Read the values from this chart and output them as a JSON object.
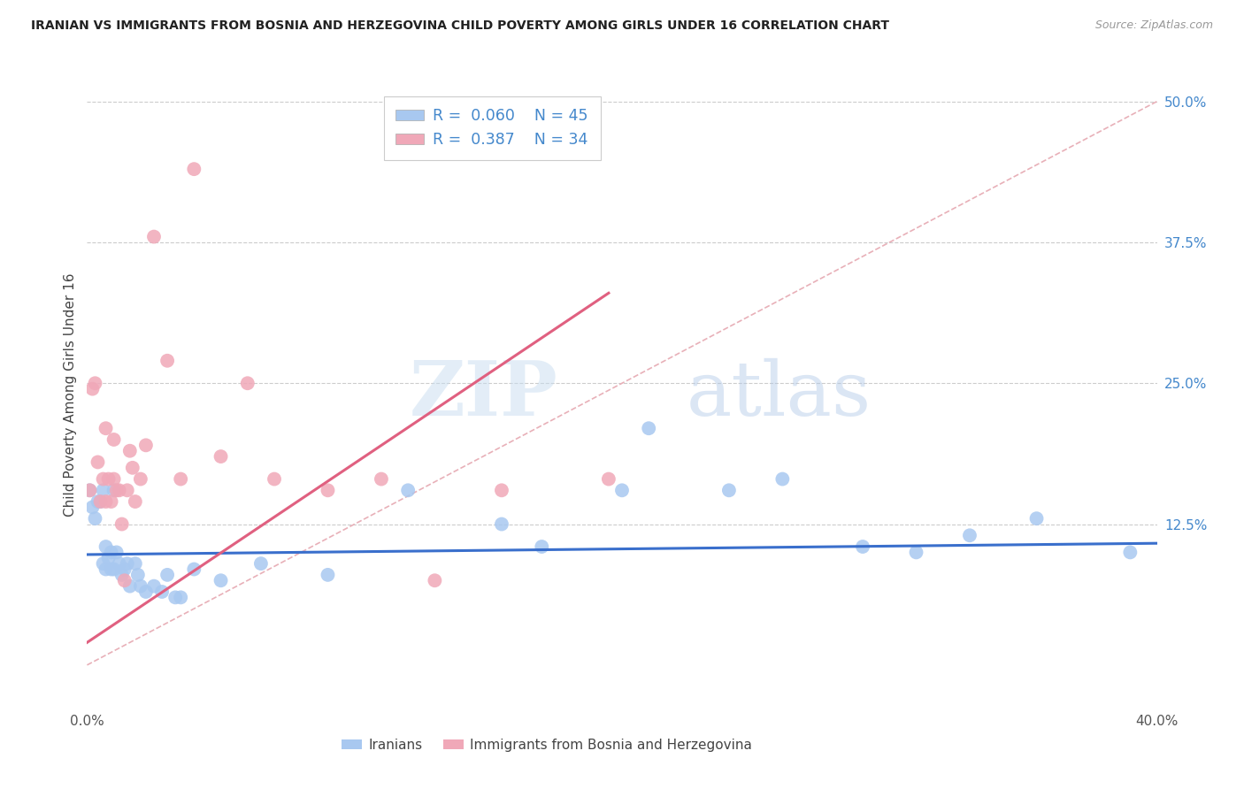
{
  "title": "IRANIAN VS IMMIGRANTS FROM BOSNIA AND HERZEGOVINA CHILD POVERTY AMONG GIRLS UNDER 16 CORRELATION CHART",
  "source": "Source: ZipAtlas.com",
  "ylabel": "Child Poverty Among Girls Under 16",
  "x_min": 0.0,
  "x_max": 0.4,
  "y_min": -0.04,
  "y_max": 0.52,
  "y_ticks_right": [
    0.125,
    0.25,
    0.375,
    0.5
  ],
  "y_tick_labels_right": [
    "12.5%",
    "25.0%",
    "37.5%",
    "50.0%"
  ],
  "color_blue": "#a8c8f0",
  "color_pink": "#f0a8b8",
  "color_blue_line": "#3a6fcc",
  "color_pink_line": "#e06080",
  "color_diag": "#e8b0b8",
  "legend_r_blue": "0.060",
  "legend_n_blue": "45",
  "legend_r_pink": "0.387",
  "legend_n_pink": "34",
  "legend_label_blue": "Iranians",
  "legend_label_pink": "Immigrants from Bosnia and Herzegovina",
  "watermark_zip": "ZIP",
  "watermark_atlas": "atlas",
  "iranians_x": [
    0.001,
    0.002,
    0.003,
    0.004,
    0.005,
    0.006,
    0.006,
    0.007,
    0.007,
    0.008,
    0.009,
    0.009,
    0.01,
    0.01,
    0.011,
    0.012,
    0.013,
    0.014,
    0.015,
    0.016,
    0.018,
    0.019,
    0.02,
    0.022,
    0.025,
    0.028,
    0.03,
    0.033,
    0.035,
    0.04,
    0.05,
    0.065,
    0.09,
    0.12,
    0.155,
    0.17,
    0.2,
    0.21,
    0.24,
    0.26,
    0.29,
    0.31,
    0.33,
    0.355,
    0.39
  ],
  "iranians_y": [
    0.155,
    0.14,
    0.13,
    0.145,
    0.145,
    0.155,
    0.09,
    0.105,
    0.085,
    0.095,
    0.1,
    0.085,
    0.155,
    0.085,
    0.1,
    0.09,
    0.08,
    0.085,
    0.09,
    0.07,
    0.09,
    0.08,
    0.07,
    0.065,
    0.07,
    0.065,
    0.08,
    0.06,
    0.06,
    0.085,
    0.075,
    0.09,
    0.08,
    0.155,
    0.125,
    0.105,
    0.155,
    0.21,
    0.155,
    0.165,
    0.105,
    0.1,
    0.115,
    0.13,
    0.1
  ],
  "bosnia_x": [
    0.001,
    0.002,
    0.003,
    0.004,
    0.005,
    0.006,
    0.007,
    0.007,
    0.008,
    0.009,
    0.01,
    0.01,
    0.011,
    0.012,
    0.013,
    0.014,
    0.015,
    0.016,
    0.017,
    0.018,
    0.02,
    0.022,
    0.025,
    0.03,
    0.035,
    0.04,
    0.05,
    0.06,
    0.07,
    0.09,
    0.11,
    0.13,
    0.155,
    0.195
  ],
  "bosnia_y": [
    0.155,
    0.245,
    0.25,
    0.18,
    0.145,
    0.165,
    0.145,
    0.21,
    0.165,
    0.145,
    0.165,
    0.2,
    0.155,
    0.155,
    0.125,
    0.075,
    0.155,
    0.19,
    0.175,
    0.145,
    0.165,
    0.195,
    0.38,
    0.27,
    0.165,
    0.44,
    0.185,
    0.25,
    0.165,
    0.155,
    0.165,
    0.075,
    0.155,
    0.165
  ],
  "blue_trend_x0": 0.0,
  "blue_trend_y0": 0.098,
  "blue_trend_x1": 0.4,
  "blue_trend_y1": 0.108,
  "pink_trend_x0": 0.0,
  "pink_trend_y0": 0.02,
  "pink_trend_x1": 0.195,
  "pink_trend_y1": 0.33
}
